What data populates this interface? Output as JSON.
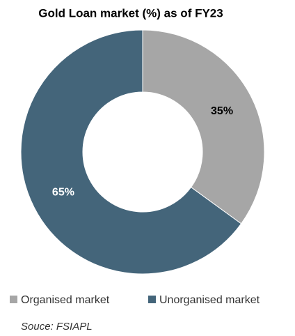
{
  "chart_data": {
    "type": "donut",
    "title": "Gold Loan market (%) as of FY23",
    "categories": [
      "Organised market",
      "Unorganised market"
    ],
    "values": [
      35,
      65
    ],
    "value_labels": [
      "35%",
      "65%"
    ],
    "colors": [
      "#a6a6a6",
      "#44657a"
    ],
    "label_colors": [
      "#000000",
      "#ffffff"
    ],
    "legend": "bottom",
    "source": "Souce: FSIAPL"
  }
}
